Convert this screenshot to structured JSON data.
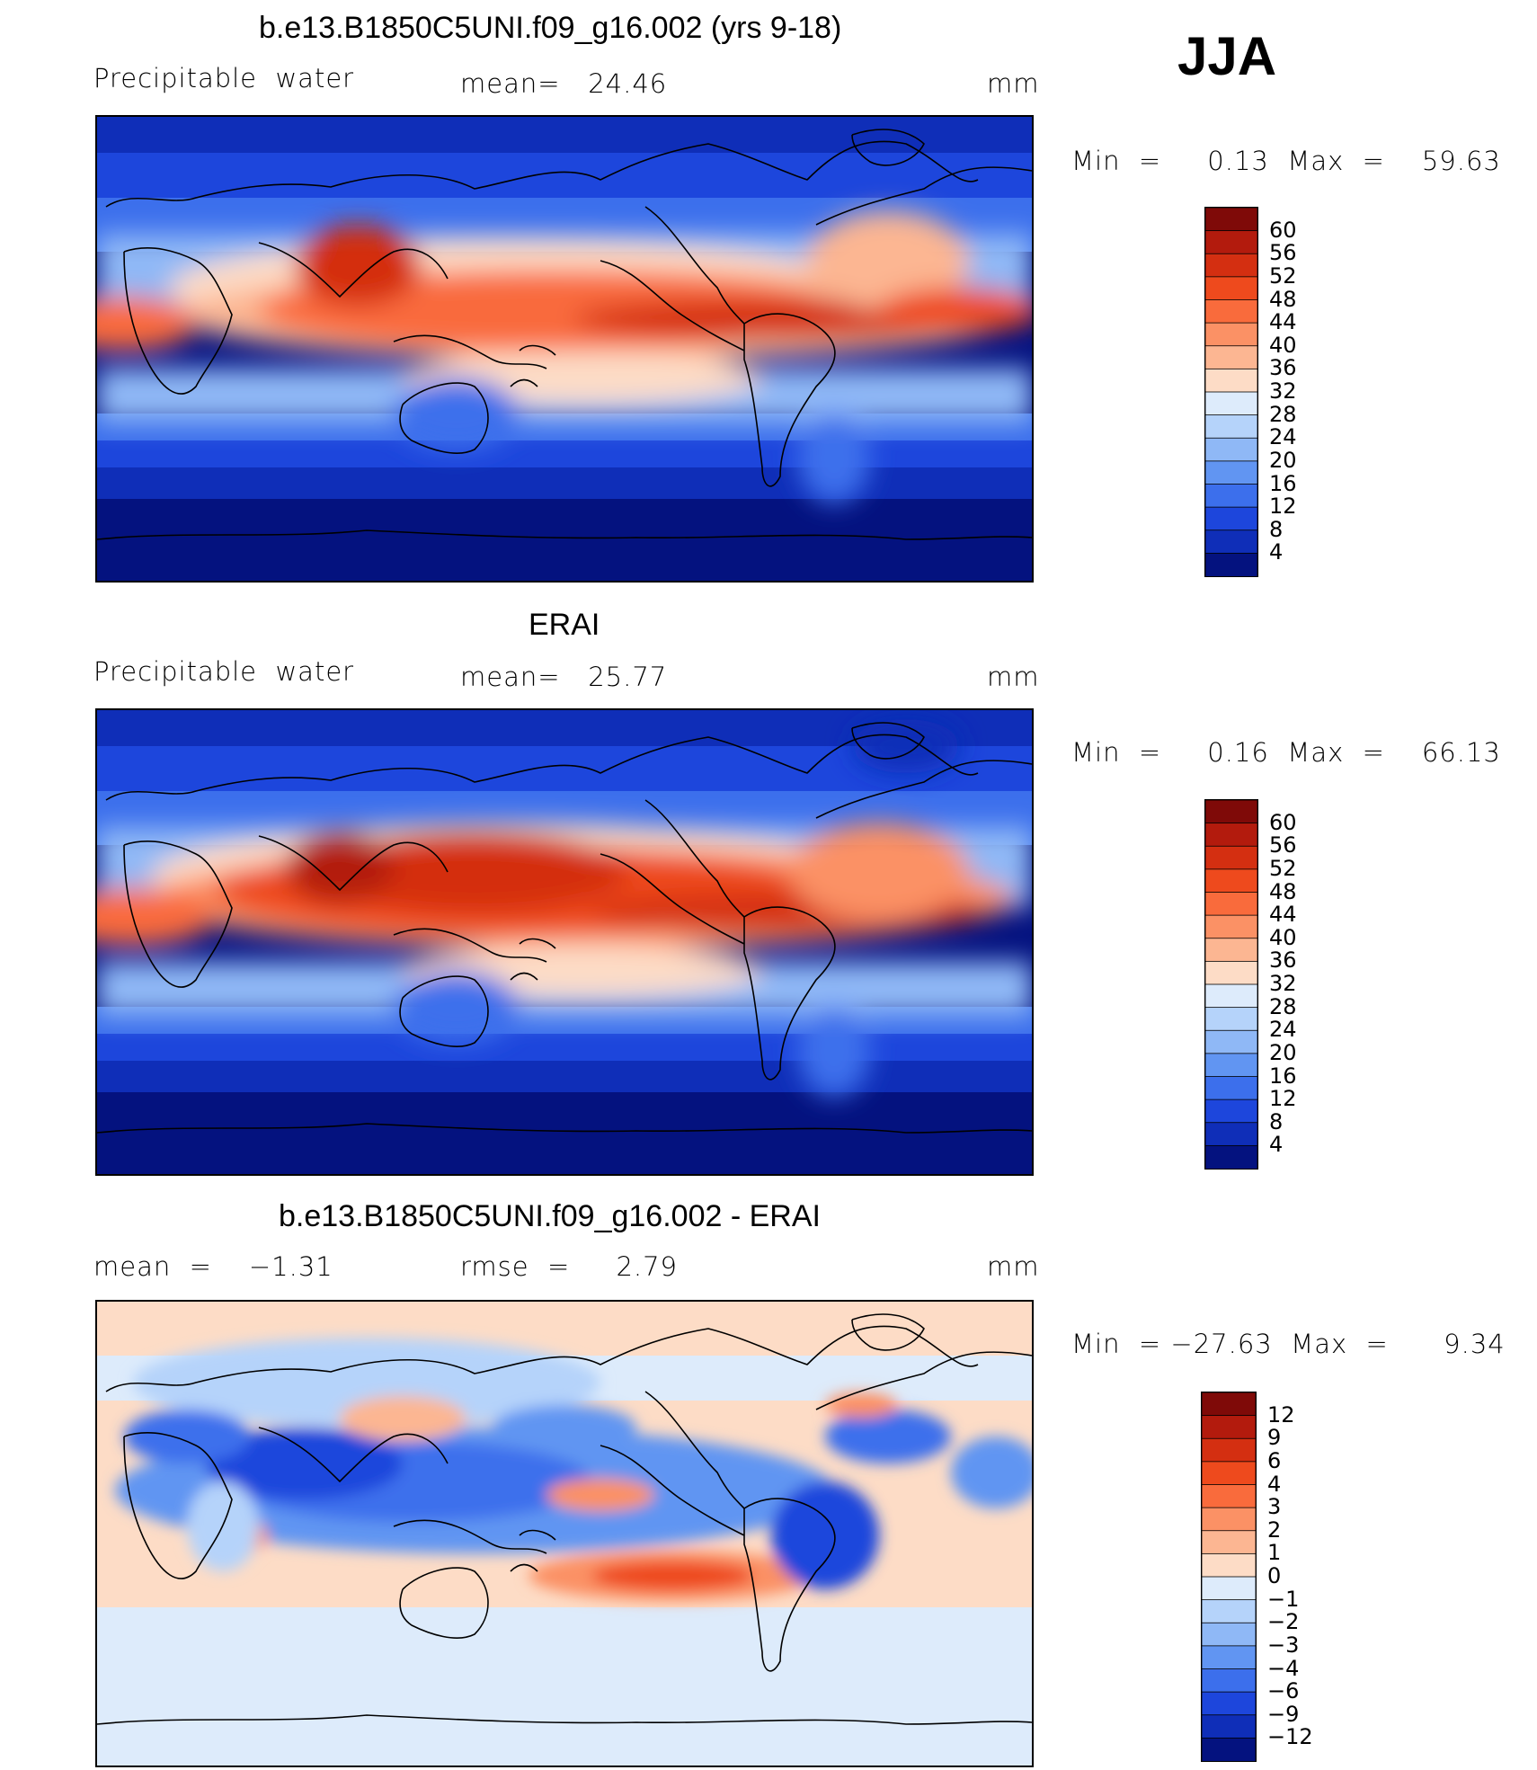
{
  "season": "JJA",
  "panels": [
    {
      "title": "b.e13.B1850C5UNI.f09_g16.002 (yrs 9-18)",
      "left_label": "Precipitable  water",
      "center_label": "mean=   24.46",
      "units": "mm",
      "minmax": "Min  =     0.13  Max  =    59.63",
      "min": 0.13,
      "max": 59.63,
      "mean": 24.46
    },
    {
      "title": "ERAI",
      "left_label": "Precipitable  water",
      "center_label": "mean=   25.77",
      "units": "mm",
      "minmax": "Min  =     0.16  Max  =    66.13",
      "min": 0.16,
      "max": 66.13,
      "mean": 25.77
    },
    {
      "title": "b.e13.B1850C5UNI.f09_g16.002 - ERAI",
      "left_label": "mean  =    −1.31",
      "center_label": "rmse  =     2.79",
      "units": "mm",
      "minmax": "Min  = −27.63  Max  =      9.34",
      "min": -27.63,
      "max": 9.34,
      "mean": -1.31,
      "rmse": 2.79
    }
  ],
  "legend_abs": {
    "labels": [
      "60",
      "56",
      "52",
      "48",
      "44",
      "40",
      "36",
      "32",
      "28",
      "24",
      "20",
      "16",
      "12",
      "8",
      "4"
    ],
    "colors": [
      "#7f0a08",
      "#b31b0d",
      "#d42f11",
      "#ee4a1d",
      "#f96b3c",
      "#fb9165",
      "#fcb692",
      "#fddcc6",
      "#ddebfb",
      "#b5d3fa",
      "#8fb8f6",
      "#6195f2",
      "#3c6fec",
      "#1d46dc",
      "#0f2eb8",
      "#04127f"
    ]
  },
  "legend_diff": {
    "labels": [
      "12",
      "9",
      "6",
      "4",
      "3",
      "2",
      "1",
      "0",
      "−1",
      "−2",
      "−3",
      "−4",
      "−6",
      "−9",
      "−12"
    ],
    "colors": [
      "#7f0a08",
      "#b31b0d",
      "#d42f11",
      "#ee4a1d",
      "#f96b3c",
      "#fb9165",
      "#fcb692",
      "#fddcc6",
      "#ddebfb",
      "#b5d3fa",
      "#8fb8f6",
      "#6195f2",
      "#3c6fec",
      "#1d46dc",
      "#0f2eb8",
      "#04127f"
    ]
  }
}
